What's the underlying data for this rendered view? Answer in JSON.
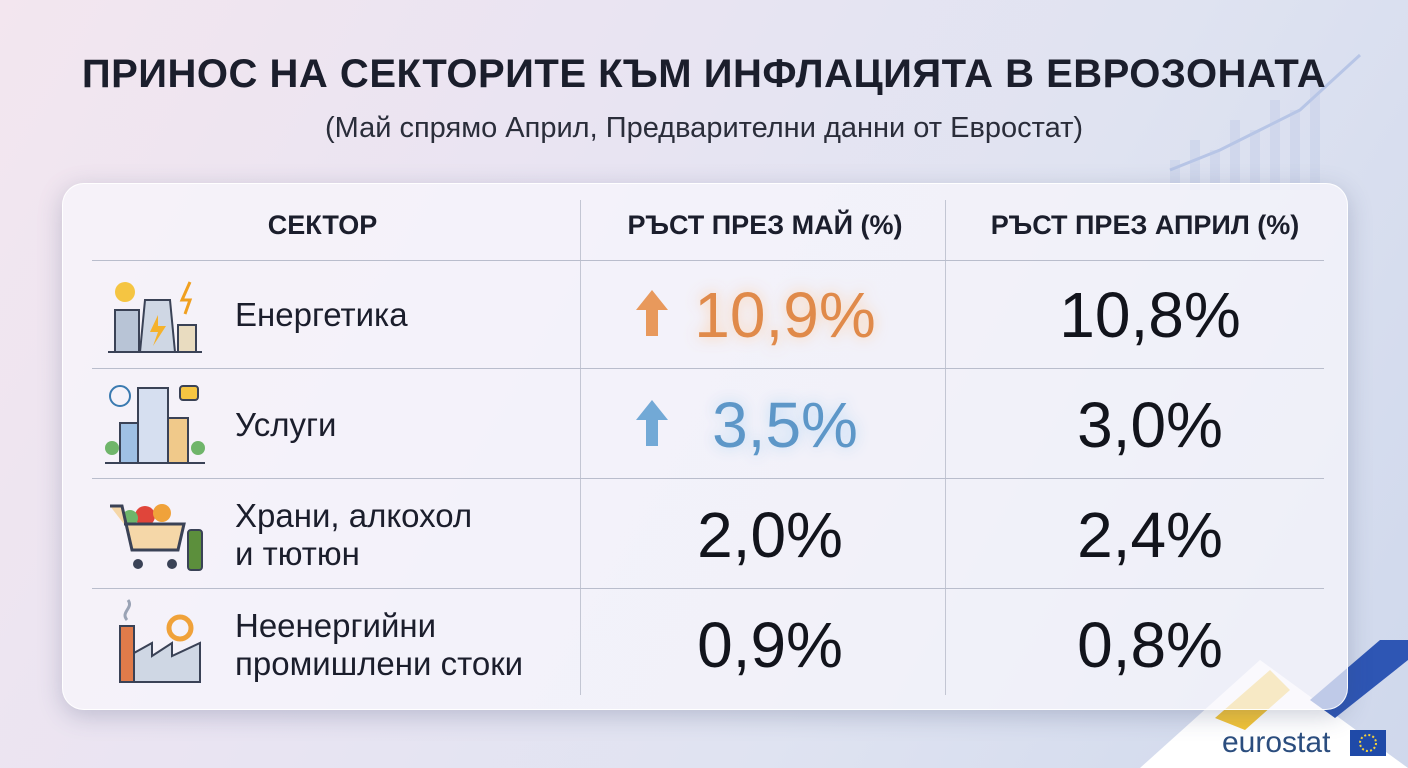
{
  "header": {
    "title": "ПРИНОС НА СЕКТОРИТЕ КЪМ ИНФЛАЦИЯТА В ЕВРОЗОНАТА",
    "subtitle": "(Май спрямо Април, Предварителни данни от Евростат)"
  },
  "table": {
    "columns": [
      "СЕКТОР",
      "РЪСТ ПРЕЗ МАЙ (%)",
      "РЪСТ ПРЕЗ АПРИЛ (%)"
    ],
    "rows": [
      [
        "Енергетика",
        "10,9%",
        "10,8%"
      ],
      [
        "Услуги",
        "3,5%",
        "3,0%"
      ],
      [
        "Храни, алкохол\nи тютюн",
        "2,0%",
        "2,4%"
      ],
      [
        "Неенергийни\nпромишлени стоки",
        "0,9%",
        "0,8%"
      ]
    ]
  },
  "footer": {
    "logo": "eurostat"
  }
}
